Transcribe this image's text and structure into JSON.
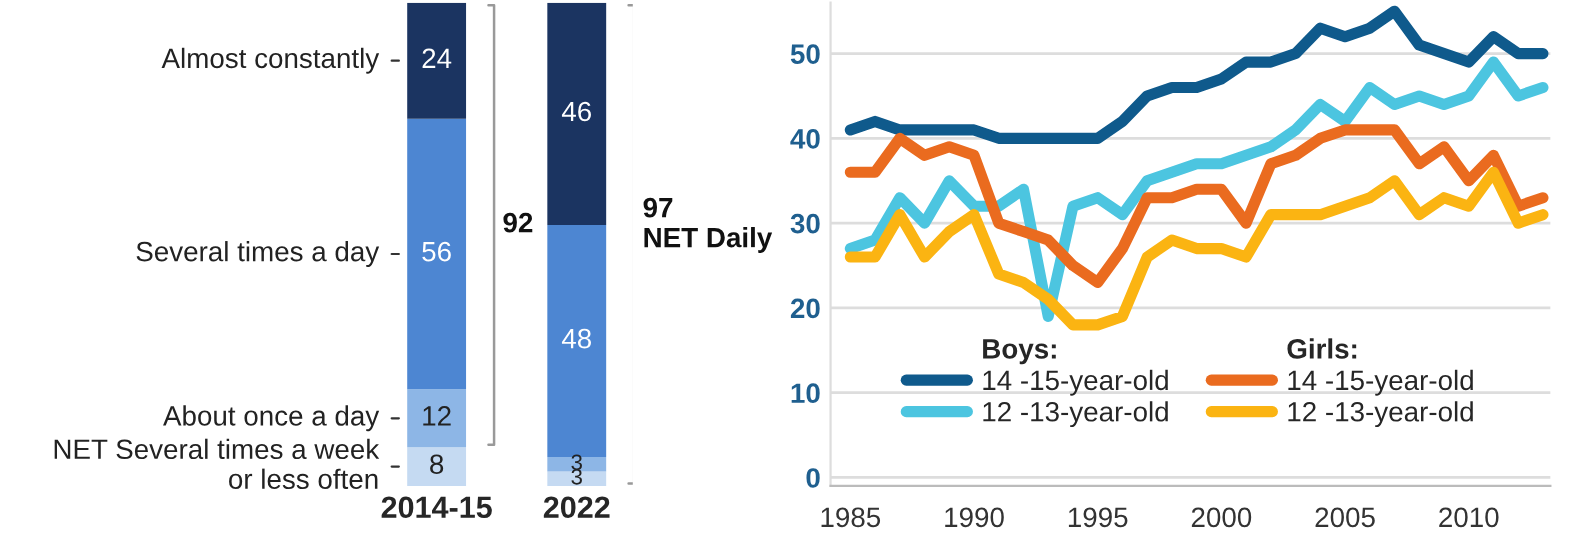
{
  "chart_data": [
    {
      "type": "bar",
      "stacked": true,
      "categories": [
        "2014-15",
        "2022"
      ],
      "data_labels": true,
      "tick_labels": "x",
      "series": [
        {
          "name": "NET Several times a week\nor less often",
          "color": "#c5daf2",
          "values": [
            8,
            3
          ]
        },
        {
          "name": "About once a day",
          "color": "#8db6e6",
          "values": [
            12,
            3
          ]
        },
        {
          "name": "Several times a day",
          "color": "#4d86d2",
          "values": [
            56,
            48
          ]
        },
        {
          "name": "Almost constantly",
          "color": "#1b3461",
          "values": [
            24,
            46
          ]
        }
      ],
      "annotations": [
        "92",
        "97\nNET Daily"
      ]
    },
    {
      "type": "line",
      "x": [
        1985,
        1986,
        1987,
        1988,
        1989,
        1990,
        1991,
        1992,
        1993,
        1994,
        1995,
        1996,
        1997,
        1998,
        1999,
        2000,
        2001,
        2002,
        2003,
        2004,
        2005,
        2006,
        2007,
        2008,
        2009,
        2010,
        2011,
        2012,
        2013
      ],
      "xlim": [
        1984.2,
        2013.3
      ],
      "xticks": [
        1985,
        1990,
        1995,
        2000,
        2005,
        2010
      ],
      "ylim": [
        -1,
        56
      ],
      "yticks": [
        0,
        10,
        20,
        30,
        40,
        50
      ],
      "grid": "y",
      "legend": "bottom",
      "marker": "none",
      "line_style": "solid",
      "series": [
        {
          "name": "14 -15-year-old",
          "color": "#0f5a8c",
          "values": [
            41,
            42,
            41,
            41,
            41,
            41,
            40,
            40,
            40,
            40,
            40,
            42,
            45,
            46,
            46,
            47,
            49,
            49,
            50,
            53,
            52,
            53,
            55,
            51,
            50,
            49,
            52,
            50,
            50
          ]
        },
        {
          "name": "12 -13-year-old",
          "color": "#4cc5e0",
          "values": [
            27,
            28,
            33,
            30,
            35,
            32,
            32,
            34,
            19,
            32,
            33,
            31,
            35,
            36,
            37,
            37,
            38,
            39,
            41,
            44,
            42,
            46,
            44,
            45,
            44,
            45,
            49,
            45,
            46
          ]
        },
        {
          "name": "14 -15-year-old",
          "color": "#ea6b1f",
          "values": [
            36,
            36,
            40,
            38,
            39,
            38,
            30,
            29,
            28,
            25,
            23,
            27,
            33,
            33,
            34,
            34,
            30,
            37,
            38,
            40,
            41,
            41,
            41,
            37,
            39,
            35,
            38,
            32,
            33
          ]
        },
        {
          "name": "12 -13-year-old",
          "color": "#fbb412",
          "values": [
            26,
            26,
            31,
            26,
            29,
            31,
            24,
            23,
            21,
            18,
            18,
            19,
            26,
            28,
            27,
            27,
            26,
            31,
            31,
            31,
            32,
            33,
            35,
            31,
            33,
            32,
            36,
            30,
            31
          ]
        }
      ],
      "annotations": [
        "Boys:",
        "Girls:"
      ]
    }
  ]
}
